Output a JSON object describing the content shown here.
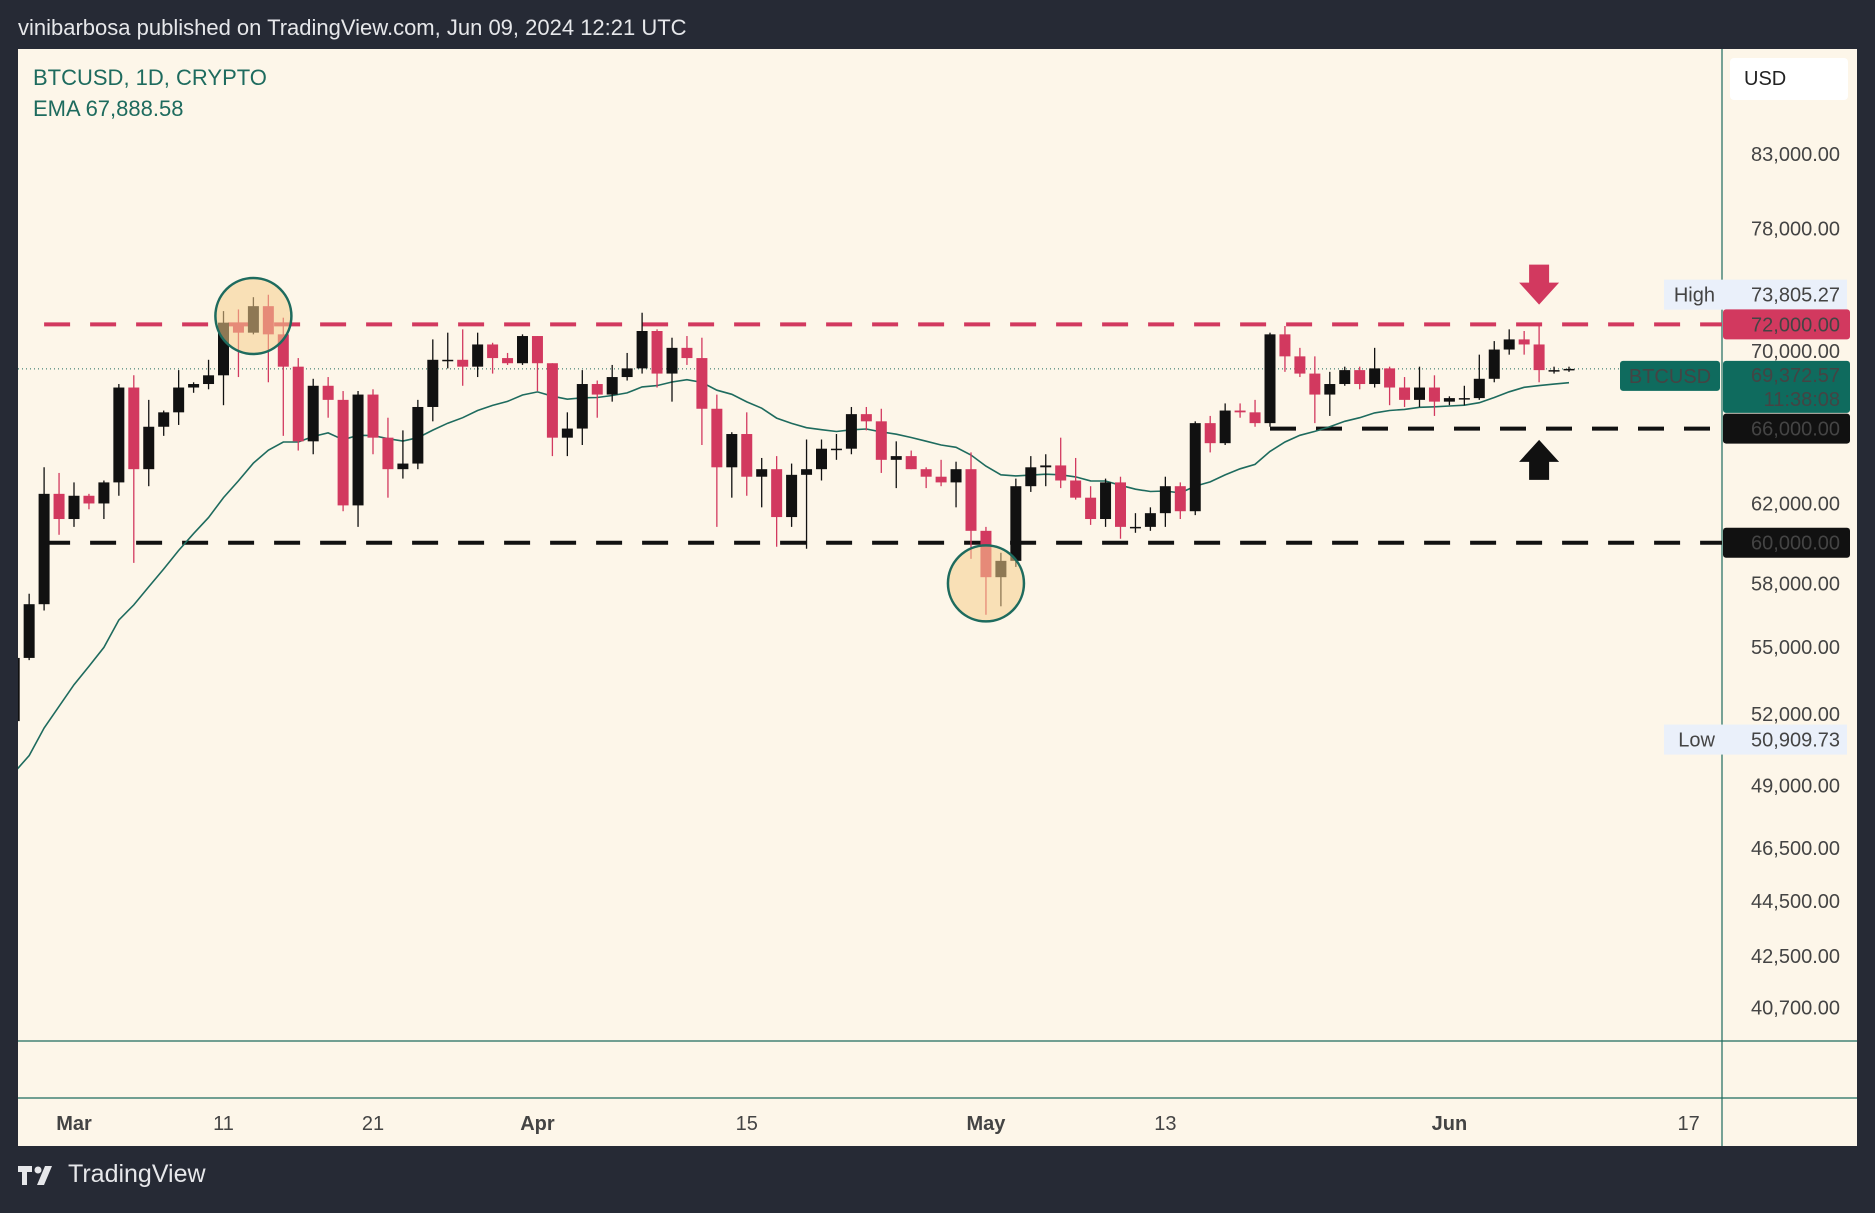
{
  "header": {
    "published": "vinibarbosa published on TradingView.com, Jun 09, 2024 12:21 UTC"
  },
  "legend": {
    "symbol": "BTCUSD, 1D, CRYPTO",
    "ema": "EMA  67,888.58"
  },
  "axis": {
    "currency": "USD"
  },
  "footer": {
    "brand": "TradingView"
  },
  "colors": {
    "up": "#111111",
    "down": "#d2395f",
    "ema": "#1e6b5e",
    "background": "#fdf6e9",
    "resistance": "#d2395f",
    "support": "#111111",
    "price_label": "#0f6b5e"
  },
  "chart_data": {
    "type": "candlestick",
    "symbol": "BTCUSD",
    "interval": "1D",
    "yscale": "log",
    "ylim": [
      39500,
      90000
    ],
    "y_ticks": [
      "83,000.00",
      "78,000.00",
      "70,000.00",
      "62,000.00",
      "58,000.00",
      "55,000.00",
      "52,000.00",
      "49,000.00",
      "46,500.00",
      "44,500.00",
      "42,500.00",
      "40,700.00"
    ],
    "y_tick_values": [
      83000,
      78000,
      70000,
      62000,
      58000,
      55000,
      52000,
      49000,
      46500,
      44500,
      42500,
      40700
    ],
    "x_ticks": [
      {
        "label": "Mar",
        "date": "2024-03-01",
        "bold": true
      },
      {
        "label": "11",
        "date": "2024-03-11"
      },
      {
        "label": "21",
        "date": "2024-03-21"
      },
      {
        "label": "Apr",
        "date": "2024-04-01",
        "bold": true
      },
      {
        "label": "15",
        "date": "2024-04-15"
      },
      {
        "label": "May",
        "date": "2024-05-01",
        "bold": true
      },
      {
        "label": "13",
        "date": "2024-05-13"
      },
      {
        "label": "Jun",
        "date": "2024-06-01",
        "bold": true
      },
      {
        "label": "17",
        "date": "2024-06-17"
      }
    ],
    "high": {
      "label": "High",
      "value": "73,805.27",
      "price": 73805.27
    },
    "low": {
      "label": "Low",
      "value": "50,909.73",
      "price": 50909.73
    },
    "last": {
      "symbol": "BTCUSD",
      "value": "69,372.57",
      "countdown": "11:38:08",
      "price": 69372.57
    },
    "ema_last": 67888.58,
    "levels": [
      {
        "price": 72000,
        "label": "72,000.00",
        "color": "#d2395f",
        "from": "2024-02-28"
      },
      {
        "price": 66000,
        "label": "66,000.00",
        "color": "#111111",
        "from": "2024-05-20"
      },
      {
        "price": 60000,
        "label": "60,000.00",
        "color": "#111111",
        "from": "2024-02-28"
      }
    ],
    "annotations": [
      {
        "type": "circle",
        "date": "2024-03-13",
        "price": 72500
      },
      {
        "type": "circle",
        "date": "2024-05-01",
        "price": 58000
      },
      {
        "type": "arrow-down",
        "date": "2024-06-07",
        "price": 74300,
        "color": "#d2395f"
      },
      {
        "type": "arrow-up",
        "date": "2024-06-07",
        "price": 64300,
        "color": "#111111"
      }
    ],
    "candles": [
      [
        "2024-02-26",
        51700,
        54900,
        50900,
        54500
      ],
      [
        "2024-02-27",
        54500,
        57500,
        54400,
        57000
      ],
      [
        "2024-02-28",
        57000,
        63900,
        56700,
        62500
      ],
      [
        "2024-02-29",
        62500,
        63600,
        60400,
        61200
      ],
      [
        "2024-03-01",
        61200,
        63100,
        60800,
        62400
      ],
      [
        "2024-03-02",
        62400,
        62500,
        61700,
        62000
      ],
      [
        "2024-03-03",
        62000,
        63200,
        61200,
        63100
      ],
      [
        "2024-03-04",
        63100,
        68500,
        62400,
        68300
      ],
      [
        "2024-03-05",
        68300,
        69000,
        59000,
        63800
      ],
      [
        "2024-03-06",
        63800,
        67600,
        62900,
        66100
      ],
      [
        "2024-03-07",
        66100,
        67000,
        65600,
        66900
      ],
      [
        "2024-03-08",
        66900,
        69300,
        66200,
        68300
      ],
      [
        "2024-03-09",
        68300,
        68600,
        68000,
        68500
      ],
      [
        "2024-03-10",
        68500,
        69900,
        68200,
        69000
      ],
      [
        "2024-03-11",
        69000,
        72800,
        67300,
        72100
      ],
      [
        "2024-03-12",
        72100,
        72900,
        68900,
        71500
      ],
      [
        "2024-03-13",
        71500,
        73650,
        71400,
        73100
      ],
      [
        "2024-03-14",
        73100,
        73800,
        68600,
        71400
      ],
      [
        "2024-03-15",
        71400,
        72400,
        65600,
        69500
      ],
      [
        "2024-03-16",
        69500,
        70000,
        64800,
        65300
      ],
      [
        "2024-03-17",
        65300,
        68800,
        64600,
        68400
      ],
      [
        "2024-03-18",
        68400,
        68900,
        66600,
        67600
      ],
      [
        "2024-03-19",
        67600,
        68100,
        61600,
        61900
      ],
      [
        "2024-03-20",
        61900,
        68100,
        60800,
        67900
      ],
      [
        "2024-03-21",
        67900,
        68200,
        64600,
        65500
      ],
      [
        "2024-03-22",
        65500,
        66600,
        62300,
        63800
      ],
      [
        "2024-03-23",
        63800,
        65900,
        63300,
        64100
      ],
      [
        "2024-03-24",
        64100,
        67600,
        63800,
        67200
      ],
      [
        "2024-03-25",
        67200,
        71100,
        66400,
        69900
      ],
      [
        "2024-03-26",
        69900,
        71500,
        69400,
        69900
      ],
      [
        "2024-03-27",
        69900,
        71700,
        68400,
        69500
      ],
      [
        "2024-03-28",
        69500,
        71500,
        68900,
        70800
      ],
      [
        "2024-03-29",
        70800,
        70900,
        69100,
        70000
      ],
      [
        "2024-03-30",
        70000,
        70300,
        69600,
        69700
      ],
      [
        "2024-03-31",
        69700,
        71400,
        69600,
        71300
      ],
      [
        "2024-04-01",
        71300,
        71300,
        68100,
        69700
      ],
      [
        "2024-04-02",
        69700,
        69700,
        64500,
        65500
      ],
      [
        "2024-04-03",
        65500,
        66900,
        64500,
        66000
      ],
      [
        "2024-04-04",
        66000,
        69300,
        65100,
        68500
      ],
      [
        "2024-04-05",
        68500,
        68700,
        66600,
        67900
      ],
      [
        "2024-04-06",
        67900,
        69600,
        67500,
        68900
      ],
      [
        "2024-04-07",
        68900,
        70300,
        68700,
        69400
      ],
      [
        "2024-04-08",
        69400,
        72700,
        69100,
        71600
      ],
      [
        "2024-04-09",
        71600,
        71700,
        68300,
        69100
      ],
      [
        "2024-04-10",
        69100,
        71200,
        67500,
        70600
      ],
      [
        "2024-04-11",
        70600,
        71300,
        69600,
        70000
      ],
      [
        "2024-04-12",
        70000,
        71200,
        65100,
        67100
      ],
      [
        "2024-04-13",
        67100,
        67900,
        60800,
        63900
      ],
      [
        "2024-04-14",
        63900,
        65800,
        62300,
        65700
      ],
      [
        "2024-04-15",
        65700,
        66900,
        62400,
        63400
      ],
      [
        "2024-04-16",
        63400,
        64400,
        61800,
        63800
      ],
      [
        "2024-04-17",
        63800,
        64500,
        59800,
        61300
      ],
      [
        "2024-04-18",
        61300,
        64100,
        60800,
        63500
      ],
      [
        "2024-04-19",
        63500,
        65400,
        59700,
        63800
      ],
      [
        "2024-04-20",
        63800,
        65400,
        63200,
        64900
      ],
      [
        "2024-04-21",
        64900,
        65700,
        64300,
        64900
      ],
      [
        "2024-04-22",
        64900,
        67200,
        64600,
        66800
      ],
      [
        "2024-04-23",
        66800,
        67200,
        65900,
        66400
      ],
      [
        "2024-04-24",
        66400,
        67100,
        63600,
        64300
      ],
      [
        "2024-04-25",
        64300,
        65300,
        62800,
        64500
      ],
      [
        "2024-04-26",
        64500,
        64800,
        63800,
        63800
      ],
      [
        "2024-04-27",
        63800,
        63900,
        62800,
        63400
      ],
      [
        "2024-04-28",
        63400,
        64300,
        62900,
        63100
      ],
      [
        "2024-04-29",
        63100,
        64200,
        61800,
        63800
      ],
      [
        "2024-04-30",
        63800,
        64700,
        59200,
        60600
      ],
      [
        "2024-05-01",
        60600,
        60800,
        56500,
        58300
      ],
      [
        "2024-05-02",
        58300,
        59500,
        56900,
        59100
      ],
      [
        "2024-05-03",
        59100,
        63300,
        58800,
        62900
      ],
      [
        "2024-05-04",
        62900,
        64500,
        62600,
        63900
      ],
      [
        "2024-05-05",
        63900,
        64600,
        62900,
        64000
      ],
      [
        "2024-05-06",
        64000,
        65500,
        62800,
        63200
      ],
      [
        "2024-05-07",
        63200,
        64400,
        62200,
        62300
      ],
      [
        "2024-05-08",
        62300,
        62900,
        60900,
        61200
      ],
      [
        "2024-05-09",
        61200,
        63300,
        60800,
        63100
      ],
      [
        "2024-05-10",
        63100,
        63400,
        60200,
        60800
      ],
      [
        "2024-05-11",
        60800,
        61500,
        60500,
        60800
      ],
      [
        "2024-05-12",
        60800,
        61800,
        60600,
        61500
      ],
      [
        "2024-05-13",
        61500,
        63400,
        60800,
        62900
      ],
      [
        "2024-05-14",
        62900,
        63100,
        61200,
        61600
      ],
      [
        "2024-05-15",
        61600,
        66400,
        61400,
        66300
      ],
      [
        "2024-05-16",
        66300,
        66700,
        64700,
        65200
      ],
      [
        "2024-05-17",
        65200,
        67400,
        65100,
        67000
      ],
      [
        "2024-05-18",
        67000,
        67400,
        66600,
        66900
      ],
      [
        "2024-05-19",
        66900,
        67600,
        66100,
        66300
      ],
      [
        "2024-05-20",
        66300,
        71500,
        66100,
        71400
      ],
      [
        "2024-05-21",
        71400,
        71900,
        69200,
        70100
      ],
      [
        "2024-05-22",
        70100,
        70600,
        68900,
        69100
      ],
      [
        "2024-05-23",
        69100,
        70100,
        66300,
        67900
      ],
      [
        "2024-05-24",
        67900,
        69200,
        66700,
        68500
      ],
      [
        "2024-05-25",
        68500,
        69500,
        68400,
        69300
      ],
      [
        "2024-05-26",
        69300,
        69500,
        68200,
        68500
      ],
      [
        "2024-05-27",
        68500,
        70600,
        68300,
        69400
      ],
      [
        "2024-05-28",
        69400,
        69500,
        67300,
        68300
      ],
      [
        "2024-05-29",
        68300,
        68900,
        67200,
        67600
      ],
      [
        "2024-05-30",
        67600,
        69500,
        67200,
        68300
      ],
      [
        "2024-05-31",
        68300,
        69000,
        66700,
        67500
      ],
      [
        "2024-06-01",
        67500,
        67800,
        67300,
        67700
      ],
      [
        "2024-06-02",
        67700,
        68400,
        67300,
        67700
      ],
      [
        "2024-06-03",
        67700,
        70200,
        67600,
        68800
      ],
      [
        "2024-06-04",
        68800,
        71000,
        68600,
        70500
      ],
      [
        "2024-06-05",
        70500,
        71700,
        70200,
        71100
      ],
      [
        "2024-06-06",
        71100,
        71600,
        70200,
        70800
      ],
      [
        "2024-06-07",
        70800,
        71900,
        68600,
        69300
      ],
      [
        "2024-06-08",
        69300,
        69500,
        69100,
        69300
      ],
      [
        "2024-06-09",
        69300,
        69500,
        69200,
        69370
      ]
    ]
  }
}
